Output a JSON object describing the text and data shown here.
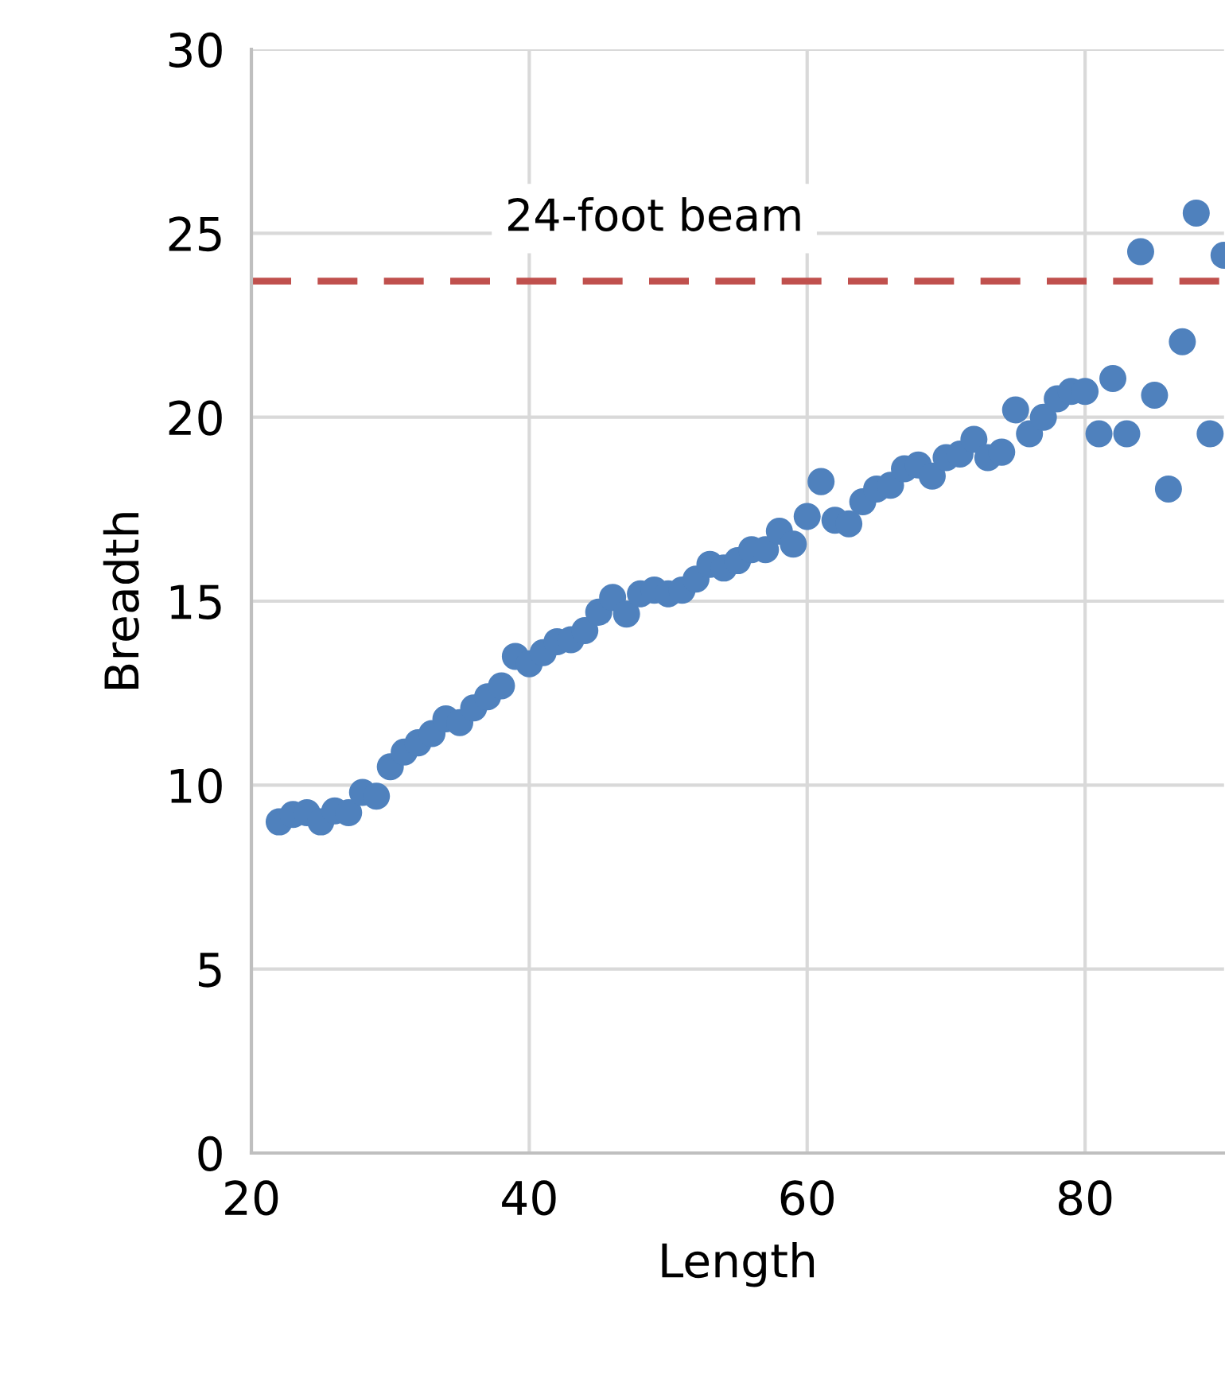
{
  "chart_data": {
    "type": "scatter",
    "xlabel": "Length",
    "ylabel": "Breadth",
    "xlim": [
      20,
      90
    ],
    "xticks": [
      20,
      40,
      60,
      80
    ],
    "ylim": [
      0,
      30
    ],
    "yticks": [
      0,
      5,
      10,
      15,
      20,
      25,
      30
    ],
    "grid": true,
    "marker": "circle",
    "series": [
      {
        "color": "#4f81bd",
        "x": [
          22,
          23,
          24,
          25,
          26,
          27,
          28,
          29,
          30,
          31,
          32,
          33,
          34,
          35,
          36,
          37,
          38,
          39,
          40,
          41,
          42,
          43,
          44,
          45,
          46,
          47,
          48,
          49,
          50,
          51,
          52,
          53,
          54,
          55,
          56,
          57,
          58,
          59,
          60,
          61,
          62,
          63,
          64,
          65,
          66,
          67,
          68,
          69,
          70,
          71,
          72,
          73,
          74,
          75,
          76,
          77,
          78,
          79,
          80,
          81,
          82,
          83,
          84,
          85,
          86,
          87,
          88,
          89,
          90
        ],
        "values": [
          9.0,
          9.2,
          9.25,
          9.0,
          9.3,
          9.25,
          9.8,
          9.7,
          10.5,
          10.9,
          11.15,
          11.4,
          11.8,
          11.7,
          12.1,
          12.4,
          12.7,
          13.5,
          13.3,
          13.6,
          13.9,
          13.95,
          14.2,
          14.7,
          15.1,
          14.65,
          15.2,
          15.3,
          15.2,
          15.3,
          15.6,
          16.0,
          15.9,
          16.1,
          16.4,
          16.4,
          16.9,
          16.55,
          17.3,
          18.25,
          17.2,
          17.1,
          17.7,
          18.05,
          18.15,
          18.6,
          18.7,
          18.4,
          18.9,
          19.0,
          19.4,
          18.9,
          19.05,
          20.2,
          19.55,
          20.0,
          20.5,
          20.7,
          20.7,
          19.55,
          21.05,
          19.55,
          24.5,
          20.6,
          18.05,
          22.05,
          25.55,
          19.55,
          24.4
        ]
      }
    ],
    "ref_lines": [
      {
        "axis": "y",
        "value": 23.7,
        "label": "24-foot beam",
        "color": "#c0504d",
        "line_style": "dashed"
      }
    ]
  }
}
